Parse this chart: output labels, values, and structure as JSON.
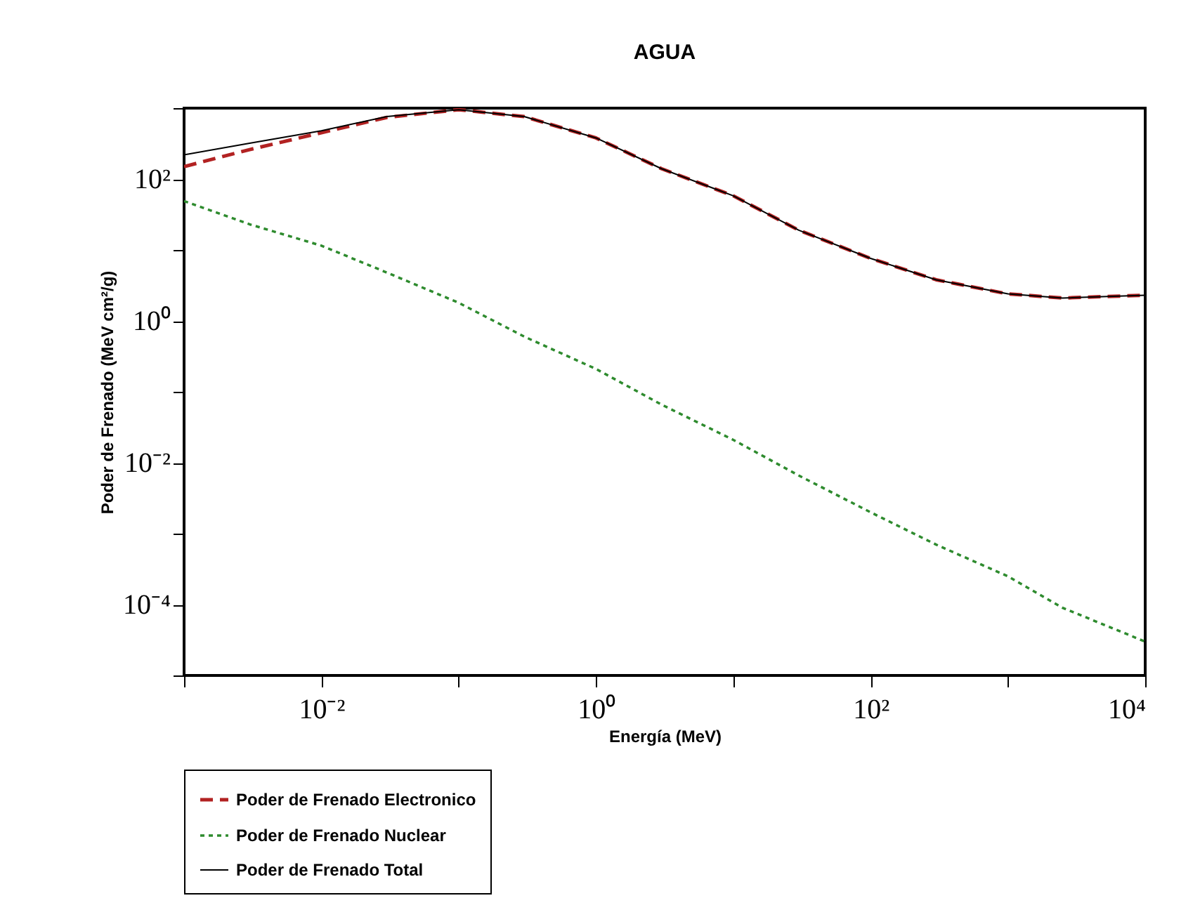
{
  "chart_data": {
    "type": "line",
    "title": "AGUA",
    "xlabel": "Energía (MeV)",
    "ylabel": "Poder de Frenado (MeV cm²/g)",
    "x": [
      0.001,
      0.003,
      0.01,
      0.03,
      0.1,
      0.3,
      1,
      3,
      10,
      30,
      100,
      300,
      1000,
      2500,
      10000
    ],
    "series": [
      {
        "name": "Poder de Frenado Electronico",
        "color": "#b22222",
        "line_style": "dashed",
        "values": [
          150,
          260,
          450,
          740,
          950,
          760,
          380,
          140,
          58,
          19,
          7.6,
          3.8,
          2.4,
          2.1,
          2.3
        ]
      },
      {
        "name": "Poder de Frenado Nuclear",
        "color": "#2e8b2e",
        "line_style": "dotted",
        "values": [
          49,
          23,
          11.5,
          4.8,
          1.8,
          0.6,
          0.21,
          0.066,
          0.021,
          0.0066,
          0.002,
          0.0007,
          0.00025,
          9e-05,
          3e-05
        ]
      },
      {
        "name": "Poder de Frenado Total",
        "color": "#000000",
        "line_style": "solid",
        "values": [
          220,
          320,
          480,
          760,
          950,
          760,
          380,
          140,
          58,
          19,
          7.6,
          3.8,
          2.4,
          2.1,
          2.3
        ]
      }
    ],
    "log": "xy",
    "xlim": [
      0.001,
      10000
    ],
    "ylim": [
      1e-05,
      1000
    ],
    "xticks": [
      {
        "value": 0.001,
        "label": null
      },
      {
        "value": 0.01,
        "label": "10⁻²"
      },
      {
        "value": 0.1,
        "label": null
      },
      {
        "value": 1,
        "label": "10⁰"
      },
      {
        "value": 10,
        "label": null
      },
      {
        "value": 100,
        "label": "10²"
      },
      {
        "value": 1000,
        "label": null
      },
      {
        "value": 10000,
        "label": "10⁴"
      }
    ],
    "yticks": [
      {
        "value": 1e-05,
        "label": null
      },
      {
        "value": 0.0001,
        "label": "10⁻⁴"
      },
      {
        "value": 0.001,
        "label": null
      },
      {
        "value": 0.01,
        "label": "10⁻²"
      },
      {
        "value": 0.1,
        "label": null
      },
      {
        "value": 1,
        "label": "10⁰"
      },
      {
        "value": 10,
        "label": null
      },
      {
        "value": 100,
        "label": "10²"
      },
      {
        "value": 1000,
        "label": null
      }
    ],
    "grid": false,
    "legend": "bottom left"
  }
}
